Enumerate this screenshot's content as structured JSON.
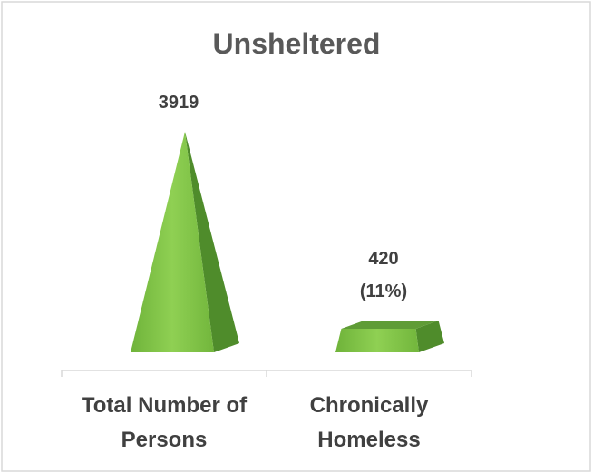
{
  "chart_data": {
    "type": "pyramid",
    "title": "Unsheltered",
    "categories": [
      "Total Number of Persons",
      "Chronically Homeless"
    ],
    "values": [
      3919,
      420
    ],
    "value_labels": [
      "3919",
      "420\n(11%)"
    ],
    "color": "#7cc142"
  }
}
